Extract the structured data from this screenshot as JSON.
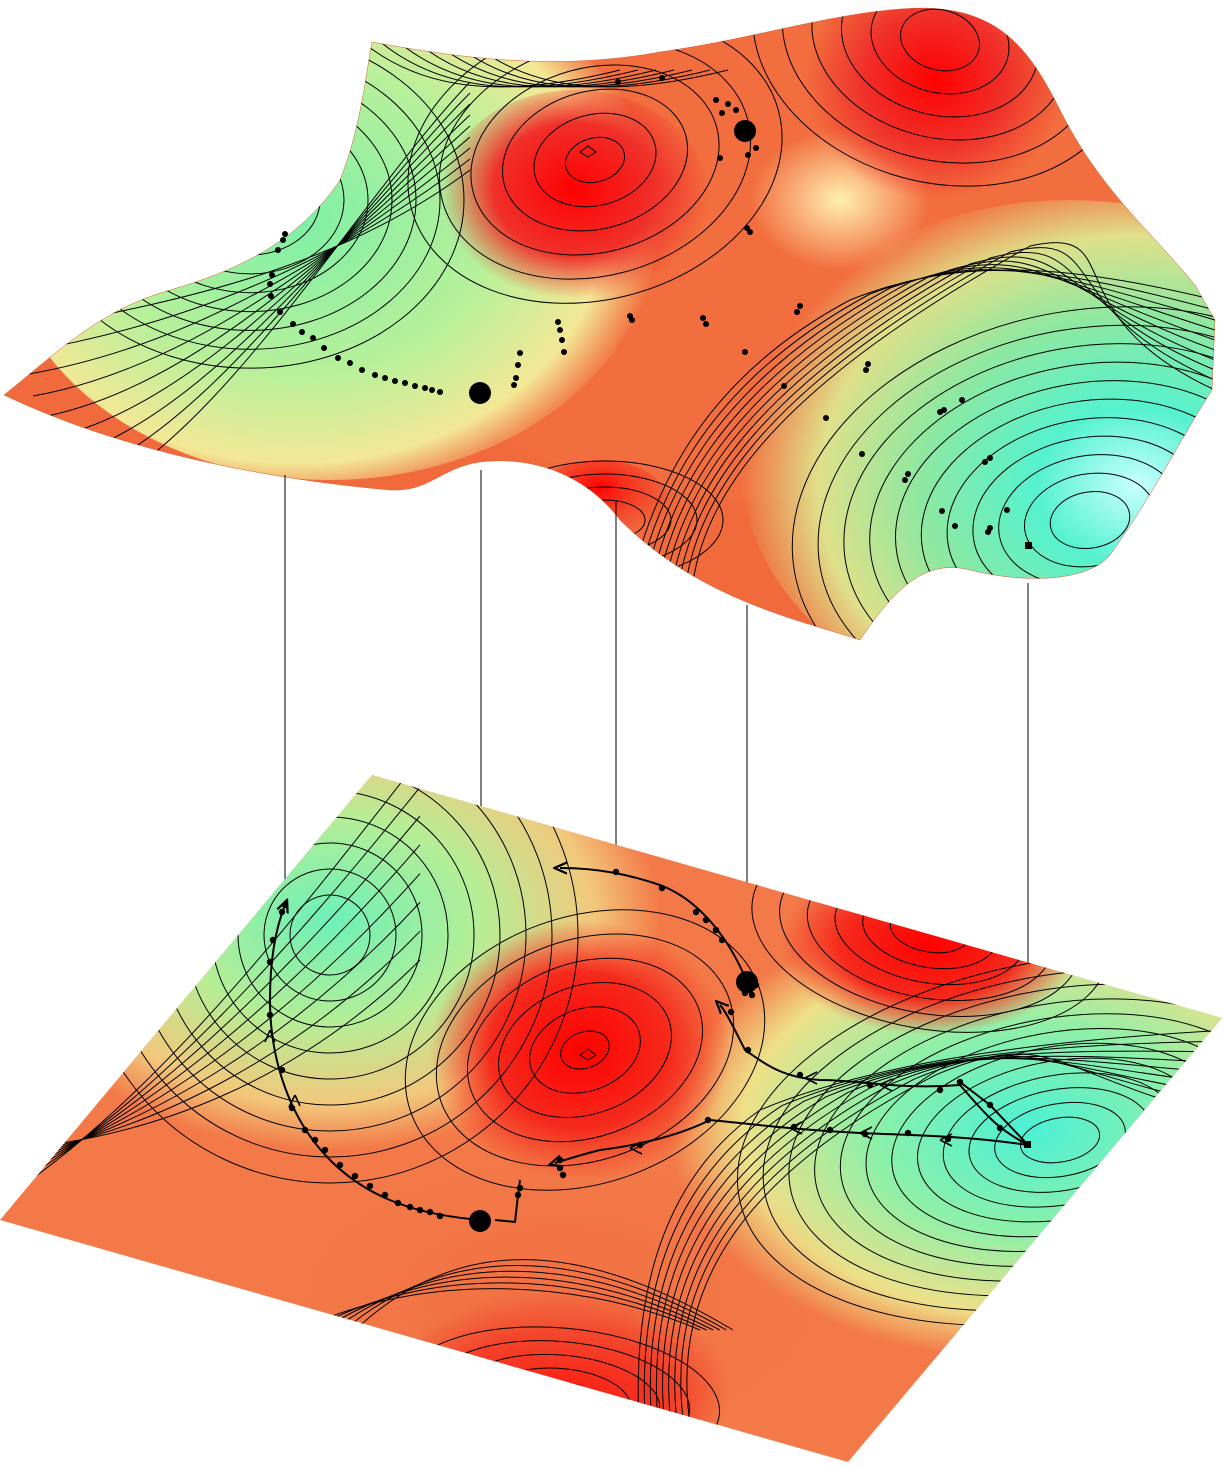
{
  "figure": {
    "description_visible_text": "",
    "colors": {
      "peak": "#ff0000",
      "high": "#f4513a",
      "mid_orange": "#f48a4e",
      "yellow": "#f6e89a",
      "light_green": "#b9f09a",
      "green": "#7ef0a6",
      "teal": "#55f2cf",
      "cyan_highlight": "#c8ffff",
      "contour": "#000000",
      "path": "#000000",
      "connector": "#000000"
    },
    "critical_points": [
      {
        "id": "saddle-left",
        "kind": "saddle"
      },
      {
        "id": "saddle-right",
        "kind": "saddle"
      },
      {
        "id": "minimum",
        "kind": "minimum"
      }
    ],
    "panels": [
      {
        "id": "surface-3d",
        "kind": "surface"
      },
      {
        "id": "contour-plane",
        "kind": "contour map"
      }
    ]
  }
}
